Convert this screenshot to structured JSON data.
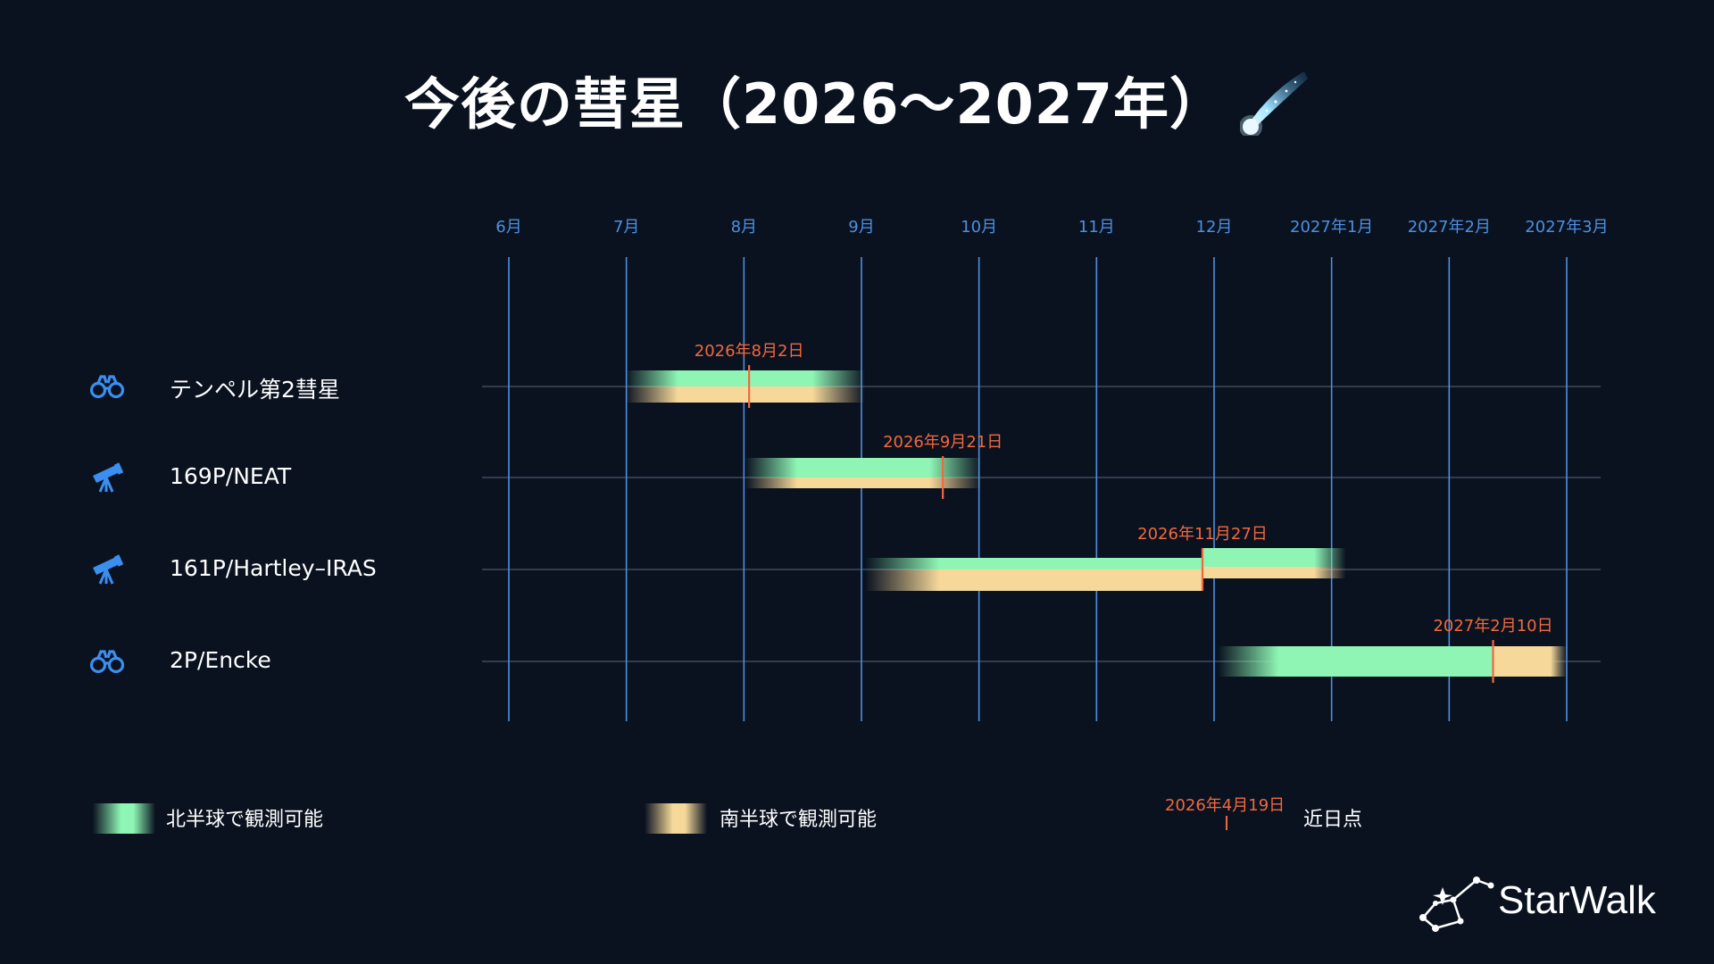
{
  "title": "今後の彗星（2026〜2027年）",
  "title_icon": "comet-icon",
  "brand": {
    "name": "StarWalk",
    "icon": "constellation-logo-icon"
  },
  "colors": {
    "background": "#0a1220",
    "month_axis": "#4d8fe0",
    "north_band": "#8ef5b4",
    "south_band": "#f5d89a",
    "perihelion": "#f2683e",
    "icon_blue": "#3b8ff0"
  },
  "legend": {
    "north": "北半球で観測可能",
    "south": "南半球で観測可能",
    "perihelion_example_date": "2026年4月19日",
    "perihelion": "近日点"
  },
  "chart_data": {
    "type": "gantt",
    "title": "今後の彗星（2026〜2027年）",
    "x_axis": {
      "ticks": [
        "6月",
        "7月",
        "8月",
        "9月",
        "10月",
        "11月",
        "12月",
        "2027年1月",
        "2027年2月",
        "2027年3月"
      ],
      "range": [
        "2026-06-01",
        "2027-03-01"
      ]
    },
    "grid": true,
    "legend_position": "bottom",
    "series": [
      {
        "name": "北半球で観測可能",
        "color": "#8ef5b4"
      },
      {
        "name": "南半球で観測可能",
        "color": "#f5d89a"
      }
    ],
    "rows": [
      {
        "name": "テンペル第2彗星",
        "instrument_icon": "binoculars-icon",
        "north": [
          "2026-07-01",
          "2026-09-01"
        ],
        "south": [
          "2026-07-01",
          "2026-09-01"
        ],
        "perihelion": "2026-08-02",
        "perihelion_label": "2026年8月2日"
      },
      {
        "name": "169P/NEAT",
        "instrument_icon": "telescope-icon",
        "north": [
          "2026-08-01",
          "2026-10-01"
        ],
        "south": [
          "2026-08-01",
          "2026-10-01"
        ],
        "perihelion": "2026-09-21",
        "perihelion_label": "2026年9月21日"
      },
      {
        "name": "161P/Hartley–IRAS",
        "instrument_icon": "telescope-icon",
        "north": [
          "2026-09-01",
          "2027-01-03"
        ],
        "south": [
          "2026-09-01",
          "2027-01-03"
        ],
        "perihelion": "2026-11-27",
        "perihelion_label": "2026年11月27日"
      },
      {
        "name": "2P/Encke",
        "instrument_icon": "binoculars-icon",
        "north": [
          "2026-12-01",
          "2027-02-10"
        ],
        "south": [
          "2027-02-10",
          "2027-03-01"
        ],
        "perihelion": "2027-02-10",
        "perihelion_label": "2027年2月10日"
      }
    ]
  }
}
